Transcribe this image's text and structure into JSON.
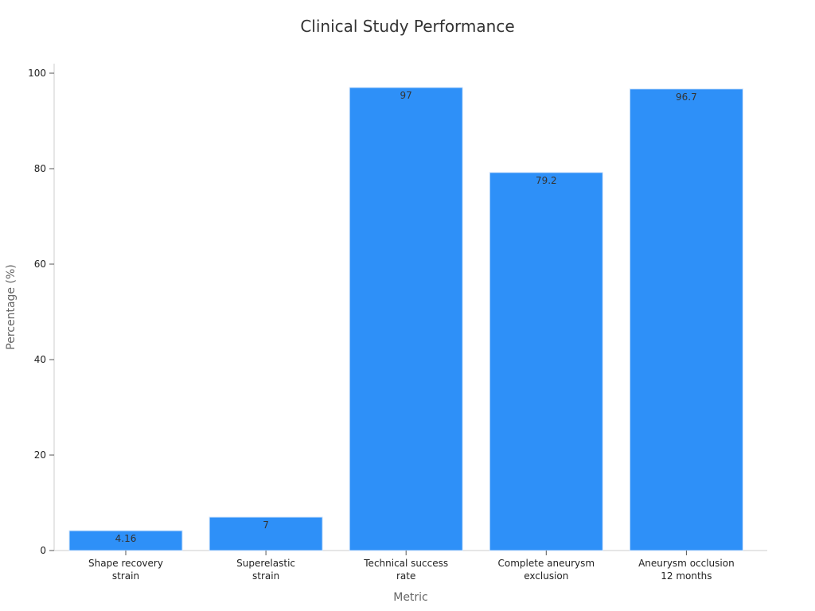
{
  "chart_data": {
    "type": "bar",
    "title": "Clinical Study Performance",
    "xlabel": "Metric",
    "ylabel": "Percentage (%)",
    "categories": [
      [
        "Shape recovery",
        "strain"
      ],
      [
        "Superelastic",
        "strain"
      ],
      [
        "Technical success",
        "rate"
      ],
      [
        "Complete aneurysm",
        "exclusion"
      ],
      [
        "Aneurysm occlusion",
        "12 months"
      ]
    ],
    "values": [
      4.16,
      7,
      97,
      79.2,
      96.7
    ],
    "value_labels": [
      "4.16",
      "7",
      "97",
      "79.2",
      "96.7"
    ],
    "ylim": [
      0,
      102
    ],
    "yticks": [
      0,
      20,
      40,
      60,
      80,
      100
    ],
    "ytick_labels": [
      "0",
      "20",
      "40",
      "60",
      "80",
      "100"
    ],
    "grid": false,
    "bar_color": "#2e90f8",
    "bar_edge_color": "#cfe3fb"
  }
}
